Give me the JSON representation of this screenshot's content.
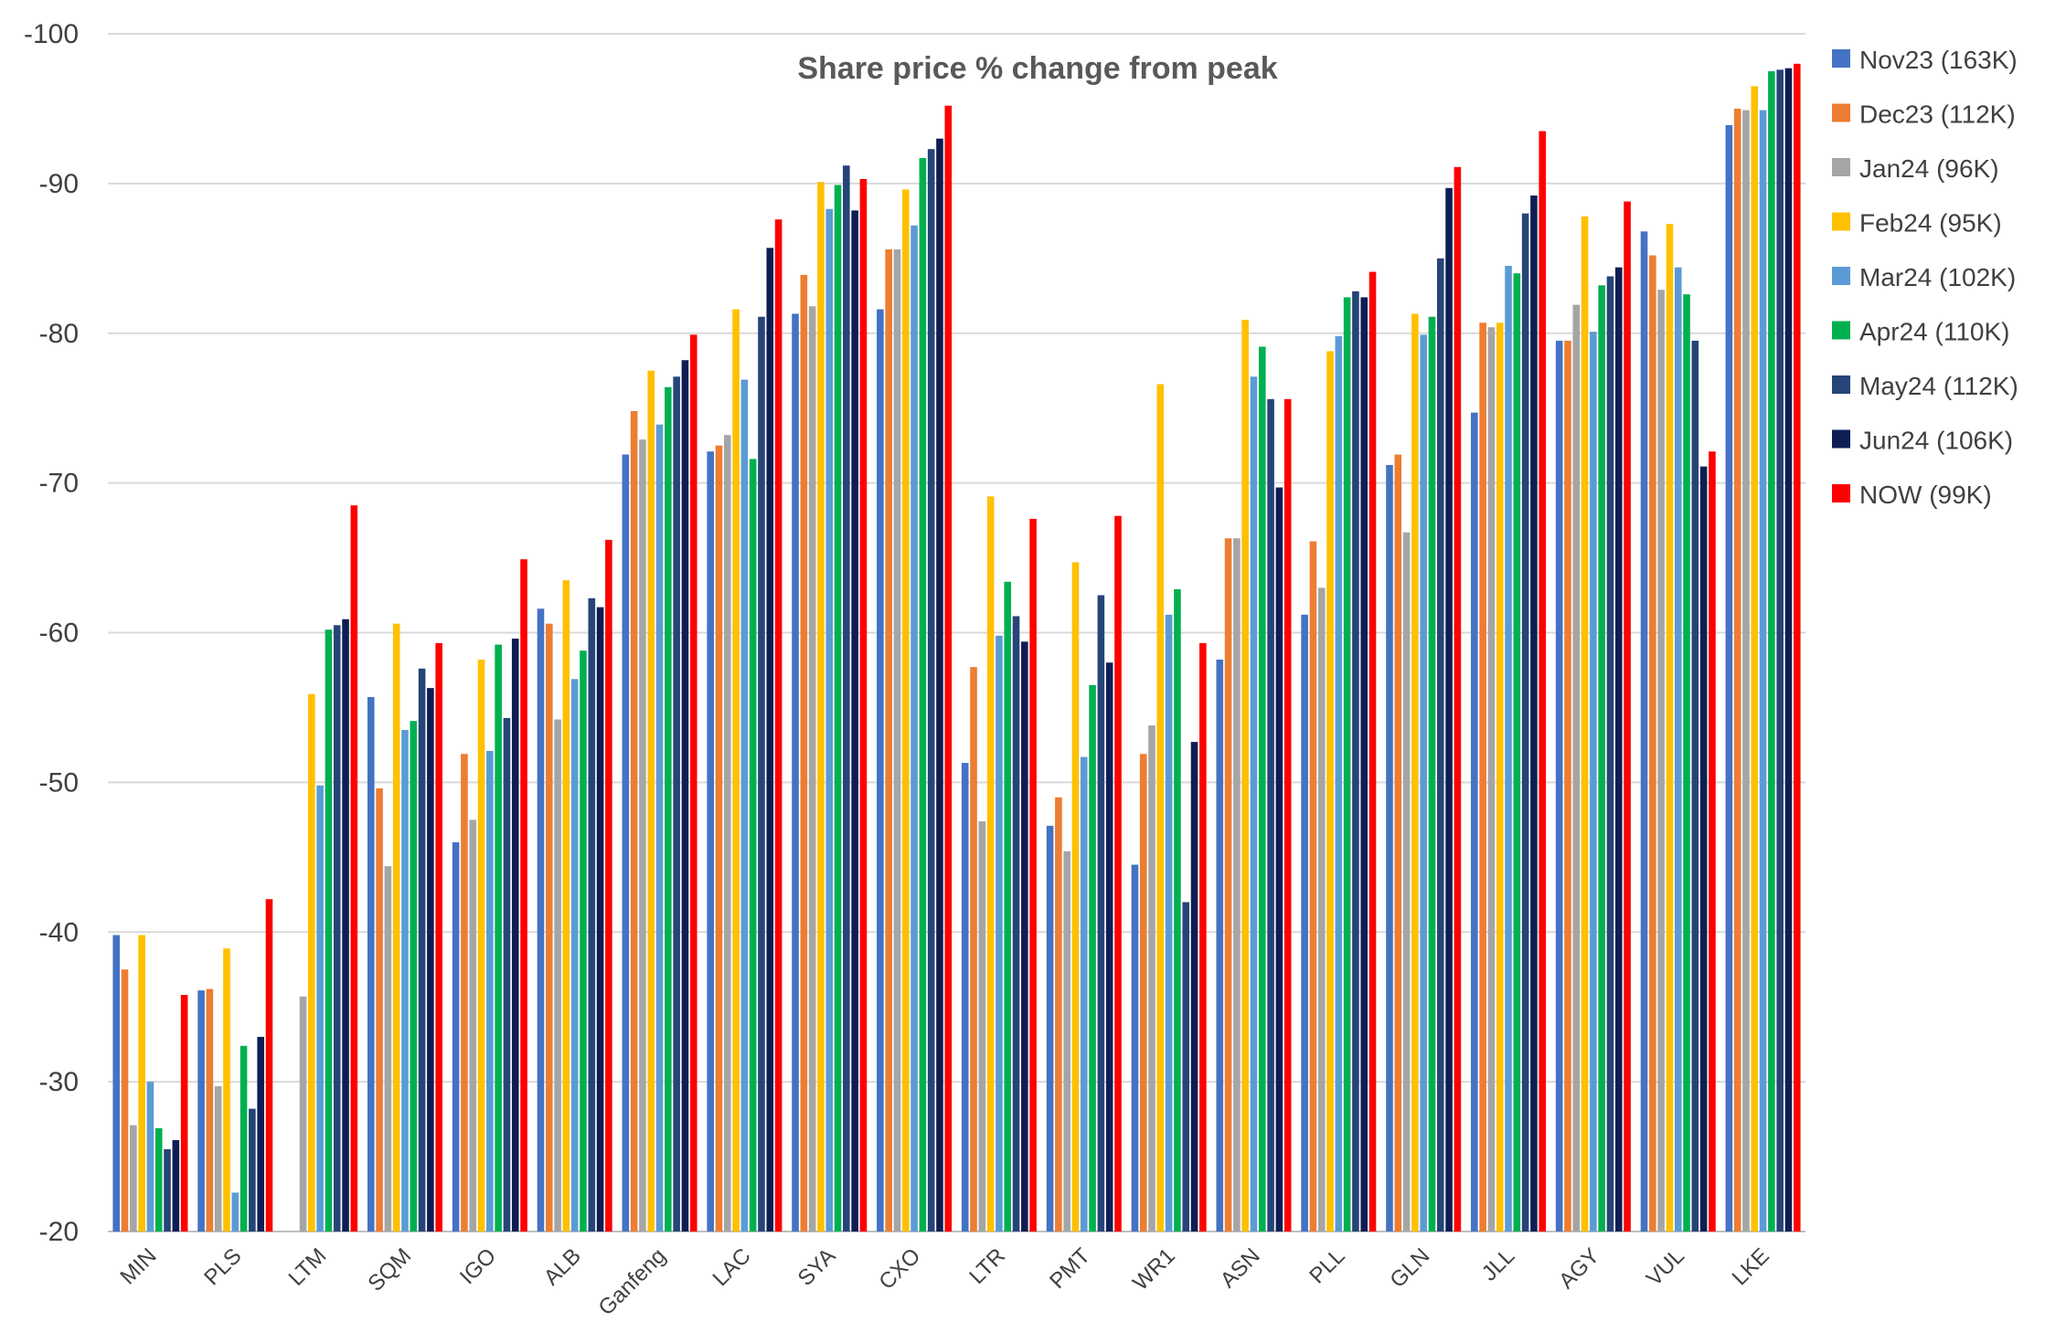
{
  "chart_data": {
    "type": "bar",
    "title": "Share price % change from peak",
    "xlabel": "",
    "ylabel": "",
    "ylim": [
      -20,
      -100
    ],
    "yticks": [
      -100,
      -90,
      -80,
      -70,
      -60,
      -50,
      -40,
      -30,
      -20
    ],
    "ytick_labels": [
      "-100",
      "-90",
      "-80",
      "-70",
      "-60",
      "-50",
      "-40",
      "-30",
      "-20"
    ],
    "y_reversed": true,
    "grid": true,
    "legend_position": "right",
    "categories": [
      "MIN",
      "PLS",
      "LTM",
      "SQM",
      "IGO",
      "ALB",
      "Ganfeng",
      "LAC",
      "SYA",
      "CXO",
      "LTR",
      "PMT",
      "WR1",
      "ASN",
      "PLL",
      "GLN",
      "JLL",
      "AGY",
      "VUL",
      "LKE"
    ],
    "series": [
      {
        "name": "Nov23 (163K)",
        "color": "#4472C4",
        "values": [
          -39.8,
          -36.1,
          null,
          -55.7,
          -46.0,
          -61.6,
          -71.9,
          -72.1,
          -81.3,
          -81.6,
          -51.3,
          -47.1,
          -44.5,
          -58.2,
          -61.2,
          -71.2,
          -74.7,
          -79.5,
          -86.8,
          -93.9
        ]
      },
      {
        "name": "Dec23 (112K)",
        "color": "#ED7D31",
        "values": [
          -37.5,
          -36.2,
          null,
          -49.6,
          -51.9,
          -60.6,
          -74.8,
          -72.5,
          -83.9,
          -85.6,
          -57.7,
          -49.0,
          -51.9,
          -66.3,
          -66.1,
          -71.9,
          -80.7,
          -79.5,
          -85.2,
          -95.0
        ]
      },
      {
        "name": "Jan24 (96K)",
        "color": "#A5A5A5",
        "values": [
          -27.1,
          -29.7,
          -35.7,
          -44.4,
          -47.5,
          -54.2,
          -72.9,
          -73.2,
          -81.8,
          -85.6,
          -47.4,
          -45.4,
          -53.8,
          -66.3,
          -63.0,
          -66.7,
          -80.4,
          -81.9,
          -82.9,
          -94.9
        ]
      },
      {
        "name": "Feb24 (95K)",
        "color": "#FFC000",
        "values": [
          -39.8,
          -38.9,
          -55.9,
          -60.6,
          -58.2,
          -63.5,
          -77.5,
          -81.6,
          -90.1,
          -89.6,
          -69.1,
          -64.7,
          -76.6,
          -80.9,
          -78.8,
          -81.3,
          -80.7,
          -87.8,
          -87.3,
          -96.5
        ]
      },
      {
        "name": "Mar24 (102K)",
        "color": "#5B9BD5",
        "values": [
          -30.0,
          -22.6,
          -49.8,
          -53.5,
          -52.1,
          -56.9,
          -73.9,
          -76.9,
          -88.3,
          -87.2,
          -59.8,
          -51.7,
          -61.2,
          -77.1,
          -79.8,
          -79.9,
          -84.5,
          -80.1,
          -84.4,
          -94.9
        ]
      },
      {
        "name": "Apr24 (110K)",
        "color": "#00B050",
        "values": [
          -26.9,
          -32.4,
          -60.2,
          -54.1,
          -59.2,
          -58.8,
          -76.4,
          -71.6,
          -89.9,
          -91.7,
          -63.4,
          -56.5,
          -62.9,
          -79.1,
          -82.4,
          -81.1,
          -84.0,
          -83.2,
          -82.6,
          -97.5
        ]
      },
      {
        "name": "May24 (112K)",
        "color": "#264478",
        "values": [
          -25.5,
          -28.2,
          -60.5,
          -57.6,
          -54.3,
          -62.3,
          -77.1,
          -81.1,
          -91.2,
          -92.3,
          -61.1,
          -62.5,
          -42.0,
          -75.6,
          -82.8,
          -85.0,
          -88.0,
          -83.8,
          -79.5,
          -97.6
        ]
      },
      {
        "name": "Jun24 (106K)",
        "color": "#0E1E54",
        "values": [
          -26.1,
          -33.0,
          -60.9,
          -56.3,
          -59.6,
          -61.7,
          -78.2,
          -85.7,
          -88.2,
          -93.0,
          -59.4,
          -58.0,
          -52.7,
          -69.7,
          -82.4,
          -89.7,
          -89.2,
          -84.4,
          -71.1,
          -97.7
        ]
      },
      {
        "name": "NOW (99K)",
        "color": "#FF0000",
        "values": [
          -35.8,
          -42.2,
          -68.5,
          -59.3,
          -64.9,
          -66.2,
          -79.9,
          -87.6,
          -90.3,
          -95.2,
          -67.6,
          -67.8,
          -59.3,
          -75.6,
          -84.1,
          -91.1,
          -93.5,
          -88.8,
          -72.1,
          -98.0
        ]
      }
    ]
  }
}
